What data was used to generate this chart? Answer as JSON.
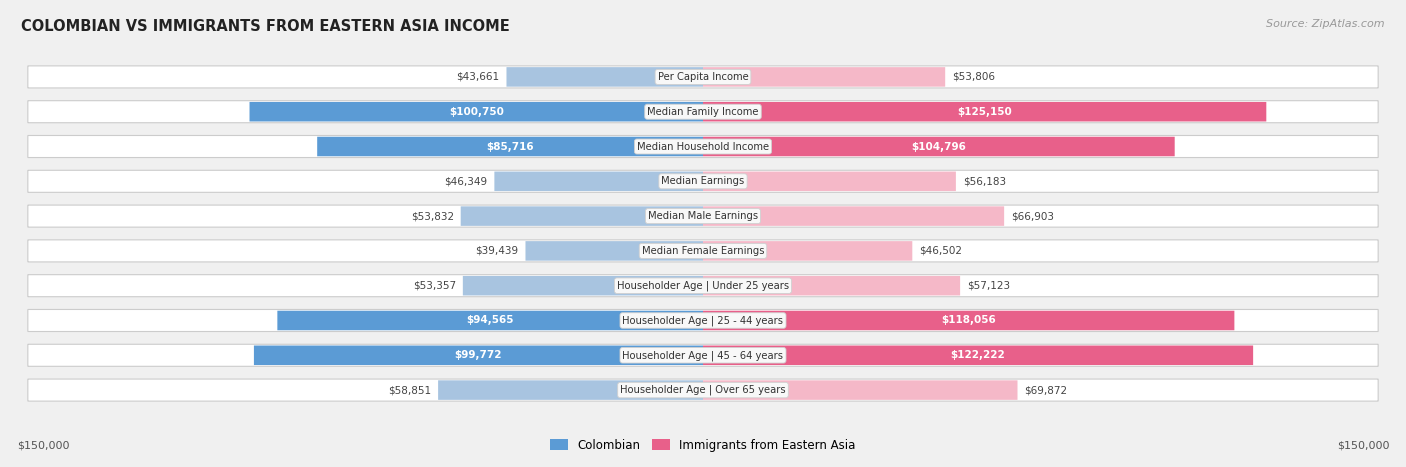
{
  "title": "COLOMBIAN VS IMMIGRANTS FROM EASTERN ASIA INCOME",
  "source": "Source: ZipAtlas.com",
  "categories": [
    "Per Capita Income",
    "Median Family Income",
    "Median Household Income",
    "Median Earnings",
    "Median Male Earnings",
    "Median Female Earnings",
    "Householder Age | Under 25 years",
    "Householder Age | 25 - 44 years",
    "Householder Age | 45 - 64 years",
    "Householder Age | Over 65 years"
  ],
  "colombian_values": [
    43661,
    100750,
    85716,
    46349,
    53832,
    39439,
    53357,
    94565,
    99772,
    58851
  ],
  "eastern_asia_values": [
    53806,
    125150,
    104796,
    56183,
    66903,
    46502,
    57123,
    118056,
    122222,
    69872
  ],
  "colombian_labels": [
    "$43,661",
    "$100,750",
    "$85,716",
    "$46,349",
    "$53,832",
    "$39,439",
    "$53,357",
    "$94,565",
    "$99,772",
    "$58,851"
  ],
  "eastern_asia_labels": [
    "$53,806",
    "$125,150",
    "$104,796",
    "$56,183",
    "$66,903",
    "$46,502",
    "$57,123",
    "$118,056",
    "$122,222",
    "$69,872"
  ],
  "max_value": 150000,
  "colombian_color_light": "#a8c4e0",
  "colombian_color_dark": "#5b9bd5",
  "eastern_asia_color_light": "#f5b8c8",
  "eastern_asia_color_dark": "#e8608a",
  "bg_color": "#f0f0f0",
  "row_bg_color": "#ffffff",
  "label_box_color": "#f8f8f8",
  "label_box_edge": "#d0d0d0",
  "x_axis_label_left": "$150,000",
  "x_axis_label_right": "$150,000",
  "legend_colombian": "Colombian",
  "legend_eastern_asia": "Immigrants from Eastern Asia",
  "inside_label_threshold": 0.58,
  "colombian_inside": [
    false,
    true,
    true,
    false,
    false,
    false,
    false,
    true,
    true,
    false
  ],
  "eastern_asia_inside": [
    false,
    true,
    true,
    false,
    false,
    false,
    false,
    true,
    true,
    false
  ]
}
